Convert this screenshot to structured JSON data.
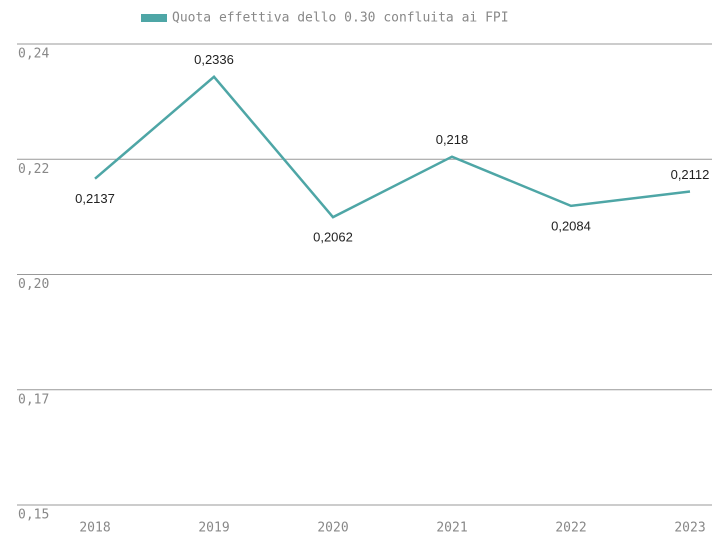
{
  "chart_data": {
    "type": "line",
    "categories": [
      "2018",
      "2019",
      "2020",
      "2021",
      "2022",
      "2023"
    ],
    "series": [
      {
        "name": "Quota effettiva dello 0.30 confluita ai FPI",
        "color": "#4ea6a6",
        "values": [
          0.2137,
          0.2336,
          0.2062,
          0.218,
          0.2084,
          0.2112
        ],
        "value_labels": [
          "0,2137",
          "0,2336",
          "0,2062",
          "0,218",
          "0,2084",
          "0,2112"
        ]
      }
    ],
    "ylim": [
      0.15,
      0.24
    ],
    "yticks": [
      {
        "value": 0.15,
        "label": "0,15"
      },
      {
        "value": 0.1725,
        "label": "0,17"
      },
      {
        "value": 0.195,
        "label": "0,20"
      },
      {
        "value": 0.2175,
        "label": "0,22"
      },
      {
        "value": 0.24,
        "label": "0,24"
      }
    ],
    "grid": true,
    "legend": "top"
  }
}
